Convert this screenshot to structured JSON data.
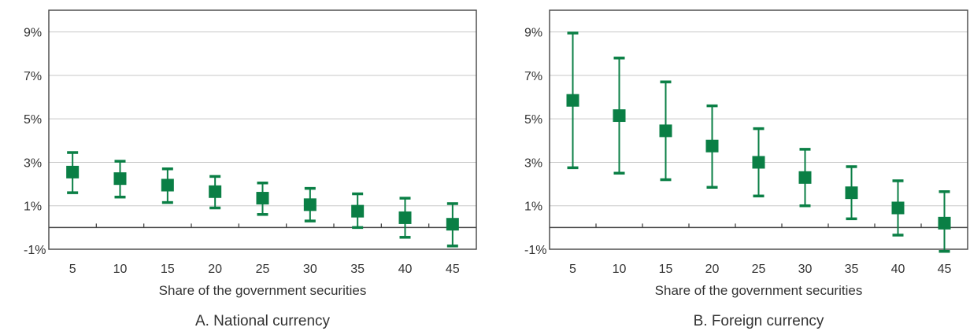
{
  "colors": {
    "marker": "#0a7f45",
    "axis": "#444444",
    "grid": "#c8c8c8",
    "text": "#333333"
  },
  "chart_data": [
    {
      "type": "scatter",
      "title": "A. National currency",
      "xlabel": "Share of the government securities",
      "ylabel": "",
      "x": [
        5,
        10,
        15,
        20,
        25,
        30,
        35,
        40,
        45
      ],
      "ylim": [
        -1,
        10
      ],
      "yticks": [
        -1,
        1,
        3,
        5,
        7,
        9
      ],
      "ytick_labels": [
        "-1%",
        "1%",
        "3%",
        "5%",
        "7%",
        "9%"
      ],
      "grid": true,
      "series": [
        {
          "estimate": [
            2.55,
            2.25,
            1.95,
            1.65,
            1.35,
            1.05,
            0.75,
            0.45,
            0.15
          ],
          "upper": [
            3.45,
            3.05,
            2.7,
            2.35,
            2.05,
            1.8,
            1.55,
            1.35,
            1.1
          ],
          "lower": [
            1.6,
            1.4,
            1.15,
            0.9,
            0.6,
            0.3,
            0.0,
            -0.45,
            -0.85
          ]
        }
      ]
    },
    {
      "type": "scatter",
      "title": "B. Foreign currency",
      "xlabel": "Share of the government securities",
      "ylabel": "",
      "x": [
        5,
        10,
        15,
        20,
        25,
        30,
        35,
        40,
        45
      ],
      "ylim": [
        -1,
        10
      ],
      "yticks": [
        -1,
        1,
        3,
        5,
        7,
        9
      ],
      "ytick_labels": [
        "-1%",
        "1%",
        "3%",
        "5%",
        "7%",
        "9%"
      ],
      "grid": true,
      "series": [
        {
          "estimate": [
            5.85,
            5.15,
            4.45,
            3.75,
            3.0,
            2.3,
            1.6,
            0.9,
            0.2
          ],
          "upper": [
            8.95,
            7.8,
            6.7,
            5.6,
            4.55,
            3.6,
            2.8,
            2.15,
            1.65
          ],
          "lower": [
            2.75,
            2.5,
            2.2,
            1.85,
            1.45,
            1.0,
            0.4,
            -0.35,
            -1.1
          ]
        }
      ]
    }
  ]
}
